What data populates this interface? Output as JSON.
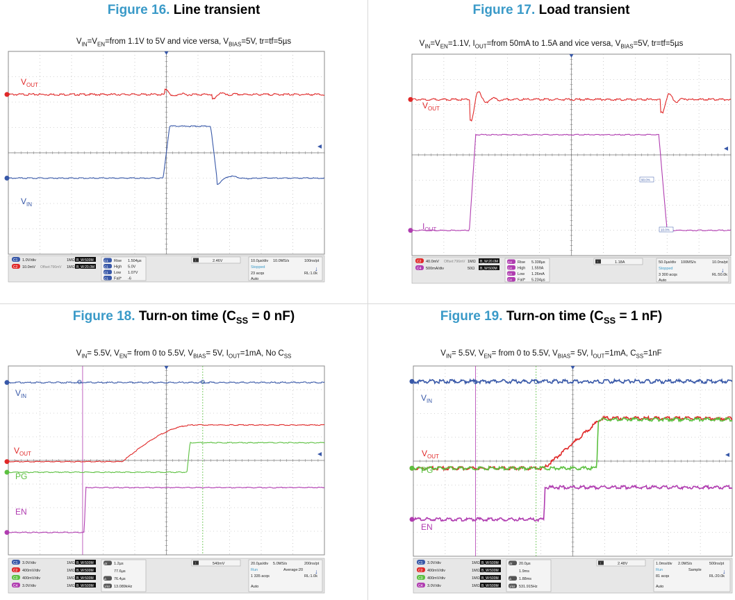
{
  "colors": {
    "figure_number": "#3a9ac8",
    "grid": "#a8a8a8",
    "screen_bg": "#ffffff",
    "status_bg": "#e7e7e7",
    "red": "#e02828",
    "blue": "#3858a8",
    "green": "#5cc040",
    "magenta": "#b03cb0"
  },
  "chart_data": [
    {
      "type": "line",
      "figure_number": "Figure 16.",
      "title": "Line transient",
      "conditions": "VIN=VEN=from 1.1V to 5V and vice versa, VBIAS=5V, tr=tf=5µs",
      "time_per_div_us": 10,
      "x_range_us": [
        -50,
        50
      ],
      "series": [
        {
          "name": "VOUT",
          "color": "red",
          "level_div": 2.3,
          "events_us": [
            0,
            15
          ],
          "ripple_div": 0.12
        },
        {
          "name": "VIN",
          "color": "blue",
          "low_div": -1.0,
          "high_div": 1.05,
          "rise_us": [
            -1,
            1
          ],
          "fall_us": [
            14,
            16
          ]
        }
      ],
      "trace_labels": [
        {
          "main": "V",
          "sub": "OUT"
        },
        {
          "main": "V",
          "sub": "IN"
        }
      ],
      "status": {
        "channels": [
          {
            "n": "C1",
            "scale": "1.0V/div",
            "imp": "1MΩ",
            "bw": "B_W:500M"
          },
          {
            "n": "C2",
            "scale": "10.0mV",
            "offset": "Offset:796mV",
            "imp": "1MΩ",
            "bw": "B_W:20.0M"
          }
        ],
        "measurements": [
          {
            "tag": "C1",
            "label": "Rise",
            "value": "1.504µs"
          },
          {
            "tag": "C1",
            "label": "High",
            "value": "5.0V"
          },
          {
            "tag": "C1",
            "label": "Low",
            "value": "1.07V"
          },
          {
            "tag": "C1",
            "label": "Fall*",
            "value": "-6"
          }
        ],
        "trigger": "2.46V",
        "timebase": {
          "tdiv": "10.0µs/div",
          "rate": "10.0MS/s",
          "res": "100ns/pt",
          "state": "Stopped",
          "acqs": "23 acqs",
          "rl": "RL:1.0k",
          "mode": "Auto"
        }
      }
    },
    {
      "type": "line",
      "figure_number": "Figure 17.",
      "title": "Load transient",
      "conditions": "VIN=VEN=1.1V, IOUT=from 50mA to 1.5A and vice versa, VBIAS=5V, tr=tf=5µs",
      "time_per_div_us": 50,
      "x_range_us": [
        -250,
        250
      ],
      "series": [
        {
          "name": "VOUT",
          "color": "red",
          "level_div": 2.2,
          "events_us": [
            -157,
            142
          ],
          "ripple_div": 0.35
        },
        {
          "name": "IOUT",
          "color": "magenta",
          "low_div": -3.0,
          "high_div": 0.8,
          "rise_us": [
            -160,
            -150
          ],
          "fall_us": [
            137,
            150
          ]
        }
      ],
      "trace_labels": [
        {
          "main": "V",
          "sub": "OUT"
        },
        {
          "main": "I",
          "sub": "OUT"
        }
      ],
      "cursor_labels": [
        "90.0%",
        "10.0%"
      ],
      "status": {
        "channels": [
          {
            "n": "C2",
            "scale": "40.0mV",
            "offset": "Offset:796mV",
            "imp": "1MΩ",
            "bw": "B_W:20.0M"
          },
          {
            "n": "C4",
            "scale": "500mA/div",
            "imp": "50Ω",
            "bw": "B_W:500M"
          }
        ],
        "measurements": [
          {
            "tag": "C4",
            "label": "Rise",
            "value": "5.338µs"
          },
          {
            "tag": "C4",
            "label": "High",
            "value": "1.559A"
          },
          {
            "tag": "C4",
            "label": "Low",
            "value": "1.26mA"
          },
          {
            "tag": "C4",
            "label": "Fall*",
            "value": "5.234µs"
          }
        ],
        "trigger": "1.18A",
        "timebase": {
          "tdiv": "50.0µs/div",
          "rate": "100MS/s",
          "res": "10.0ns/pt",
          "state": "Stopped",
          "acqs": "3 300 acqs",
          "rl": "RL:50.0k",
          "mode": "Auto"
        }
      }
    },
    {
      "type": "line",
      "figure_number": "Figure 18.",
      "title": "Turn-on time (CSS = 0 nF)",
      "title_parts": [
        "Turn-on time (C",
        "SS",
        " = 0 nF)"
      ],
      "conditions": "VIN= 5.5V, VEN= from 0 to 5.5V, VBIAS= 5V, IOUT=1mA, No CSS",
      "time_per_div_us": 20,
      "x_range_us": [
        -100,
        100
      ],
      "series": [
        {
          "name": "VIN",
          "color": "blue",
          "level_div": 3.3
        },
        {
          "name": "VOUT",
          "color": "red",
          "start_div": -0.05,
          "end_div": 1.5,
          "ramp_us": [
            -28,
            18
          ]
        },
        {
          "name": "PG",
          "color": "green",
          "low_div": -0.5,
          "high_div": 0.75,
          "step_us": [
            13,
            15
          ]
        },
        {
          "name": "EN",
          "color": "magenta",
          "low_div": -3.05,
          "high_div": -1.15,
          "step_us": [
            -52,
            -51
          ]
        }
      ],
      "trace_labels": [
        {
          "main": "V",
          "sub": "IN"
        },
        {
          "main": "V",
          "sub": "OUT"
        },
        {
          "main": "PG",
          "sub": ""
        },
        {
          "main": "EN",
          "sub": ""
        }
      ],
      "status": {
        "channels": [
          {
            "n": "C1",
            "scale": "3.0V/div",
            "imp": "1MΩ",
            "bw": "B_W:500M"
          },
          {
            "n": "C2",
            "scale": "400mV/div",
            "imp": "1MΩ",
            "bw": "B_W:500M"
          },
          {
            "n": "C3",
            "scale": "400mV/div",
            "imp": "1MΩ",
            "bw": "B_W:500M"
          },
          {
            "n": "C4",
            "scale": "3.0V/div",
            "imp": "1MΩ",
            "bw": "B_W:500M"
          }
        ],
        "measurements": [
          {
            "tag": "Δt",
            "label": "",
            "value": "1.2µs"
          },
          {
            "tag": "",
            "label": "",
            "value": "77.6µs"
          },
          {
            "tag": "Δ",
            "label": "",
            "value": "76.4µs"
          },
          {
            "tag": "1/Δt",
            "label": "",
            "value": "13.089kHz"
          }
        ],
        "trigger": "540mV",
        "timebase": {
          "tdiv": "20.0µs/div",
          "rate": "5.0MS/s",
          "res": "200ns/pt",
          "state": "Run",
          "avg": "Average:20",
          "acqs": "1 335 acqs",
          "rl": "RL:1.0k",
          "mode": "Auto"
        }
      }
    },
    {
      "type": "line",
      "figure_number": "Figure 19.",
      "title": "Turn-on time (CSS = 1 nF)",
      "title_parts": [
        "Turn-on time (C",
        "SS",
        " = 1 nF)"
      ],
      "conditions": "VIN= 5.5V, VEN= from 0 to 5.5V, VBIAS= 5V, IOUT=1mA, CSS=1nF",
      "time_per_div_ms": 1,
      "x_range_ms": [
        -5,
        5
      ],
      "series": [
        {
          "name": "VIN",
          "color": "blue",
          "level_div": 3.35
        },
        {
          "name": "VOUT",
          "color": "red",
          "start_div": -0.3,
          "end_div": 1.8,
          "ramp_ms": [
            -0.9,
            0.9
          ]
        },
        {
          "name": "PG",
          "color": "green",
          "low_div": -0.3,
          "high_div": 1.75,
          "step_ms": [
            0.75,
            0.8
          ]
        },
        {
          "name": "EN",
          "color": "magenta",
          "low_div": -2.45,
          "high_div": -1.1,
          "step_ms": [
            -0.9,
            -0.88
          ]
        }
      ],
      "trace_labels": [
        {
          "main": "V",
          "sub": "IN"
        },
        {
          "main": "V",
          "sub": "OUT"
        },
        {
          "main": "PG",
          "sub": ""
        },
        {
          "main": "EN",
          "sub": ""
        }
      ],
      "status": {
        "channels": [
          {
            "n": "C1",
            "scale": "3.0V/div",
            "imp": "1MΩ",
            "bw": "B_W:500M"
          },
          {
            "n": "C2",
            "scale": "400mV/div",
            "imp": "1MΩ",
            "bw": "B_W:500M"
          },
          {
            "n": "C3",
            "scale": "400mV/div",
            "imp": "1MΩ",
            "bw": "B_W:500M"
          },
          {
            "n": "C4",
            "scale": "3.0V/div",
            "imp": "1MΩ",
            "bw": "B_W:500M"
          }
        ],
        "measurements": [
          {
            "tag": "Δt",
            "label": "",
            "value": "20.0µs"
          },
          {
            "tag": "",
            "label": "",
            "value": "1.9ms"
          },
          {
            "tag": "Δ",
            "label": "",
            "value": "1.88ms"
          },
          {
            "tag": "1/Δt",
            "label": "",
            "value": "531.915Hz"
          }
        ],
        "trigger": "2.48V",
        "timebase": {
          "tdiv": "1.0ms/div",
          "rate": "2.0MS/s",
          "res": "500ns/pt",
          "state": "Run",
          "avg": "Sample",
          "acqs": "81 acqs",
          "rl": "RL:20.0k",
          "mode": "Auto"
        }
      }
    }
  ]
}
